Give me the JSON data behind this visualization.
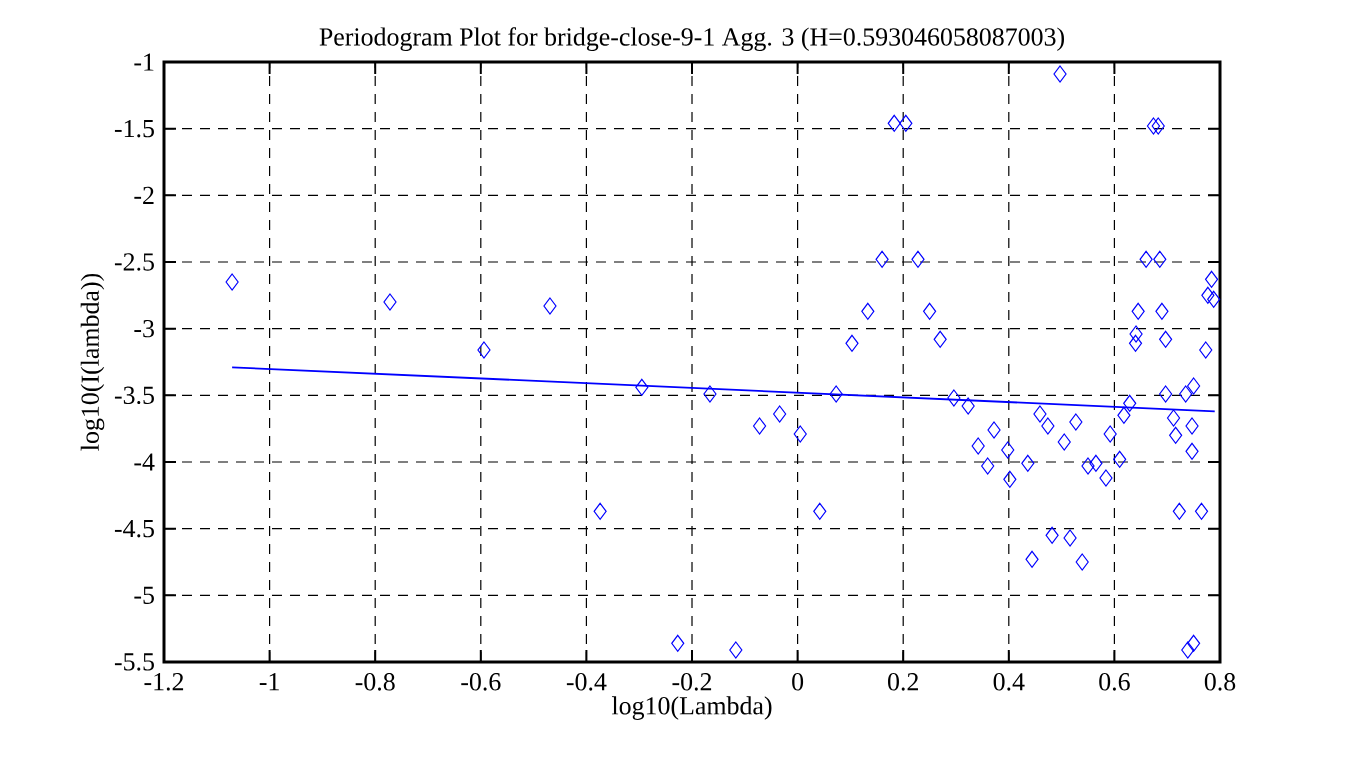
{
  "chart_data": {
    "type": "scatter",
    "title": "Periodogram Plot for bridge-close-9-1 Agg. 3 (H=0.593046058087003)",
    "xlabel": "log10(Lambda)",
    "ylabel": "log10(I(lambda))",
    "xlim": [
      -1.2,
      0.8
    ],
    "ylim": [
      -5.5,
      -1
    ],
    "xticks": [
      -1.2,
      -1,
      -0.8,
      -0.6,
      -0.4,
      -0.2,
      0,
      0.2,
      0.4,
      0.6,
      0.8
    ],
    "yticks": [
      -5.5,
      -5,
      -4.5,
      -4,
      -3.5,
      -3,
      -2.5,
      -2,
      -1.5,
      -1
    ],
    "grid": true,
    "marker": "diamond",
    "series": [
      {
        "color": "#0000ff",
        "x": [
          -1.071,
          -0.772,
          -0.594,
          -0.469,
          -0.295,
          -0.166,
          -0.374,
          -0.227,
          -0.117,
          -0.072,
          -0.034,
          0.005,
          0.042,
          0.073,
          0.103,
          0.133,
          0.16,
          0.183,
          0.205,
          0.228,
          0.25,
          0.27,
          0.296,
          0.323,
          0.342,
          0.372,
          0.36,
          0.398,
          0.402,
          0.436,
          0.444,
          0.459,
          0.474,
          0.482,
          0.516,
          0.505,
          0.527,
          0.539,
          0.497,
          0.55,
          0.565,
          0.584,
          0.592,
          0.61,
          0.618,
          0.629,
          0.64,
          0.66,
          0.674,
          0.683,
          0.686,
          0.69,
          0.645,
          0.641,
          0.697,
          0.697,
          0.712,
          0.716,
          0.735,
          0.75,
          0.723,
          0.765,
          0.739,
          0.75,
          0.773,
          0.777,
          0.788,
          0.784,
          0.747,
          0.747
        ],
        "values": [
          -2.65,
          -2.8,
          -3.16,
          -2.83,
          -3.44,
          -3.49,
          -4.37,
          -5.36,
          -5.41,
          -3.73,
          -3.64,
          -3.79,
          -4.37,
          -3.49,
          -3.11,
          -2.87,
          -2.48,
          -1.46,
          -1.46,
          -2.48,
          -2.87,
          -3.08,
          -3.52,
          -3.58,
          -3.88,
          -3.76,
          -4.03,
          -3.91,
          -4.13,
          -4.01,
          -4.73,
          -3.64,
          -3.73,
          -4.55,
          -4.57,
          -3.85,
          -3.7,
          -4.75,
          -1.09,
          -4.03,
          -4.01,
          -4.12,
          -3.79,
          -3.98,
          -3.65,
          -3.56,
          -3.11,
          -2.48,
          -1.48,
          -1.48,
          -2.48,
          -2.87,
          -2.87,
          -3.04,
          -3.08,
          -3.49,
          -3.67,
          -3.8,
          -3.49,
          -3.43,
          -4.37,
          -4.37,
          -5.41,
          -5.36,
          -3.16,
          -2.75,
          -2.78,
          -2.63,
          -3.73,
          -3.92
        ]
      },
      {
        "type": "line",
        "color": "#0000ff",
        "marker": "none",
        "x": [
          -1.071,
          0.79
        ],
        "values": [
          -3.29,
          -3.62
        ]
      }
    ]
  }
}
